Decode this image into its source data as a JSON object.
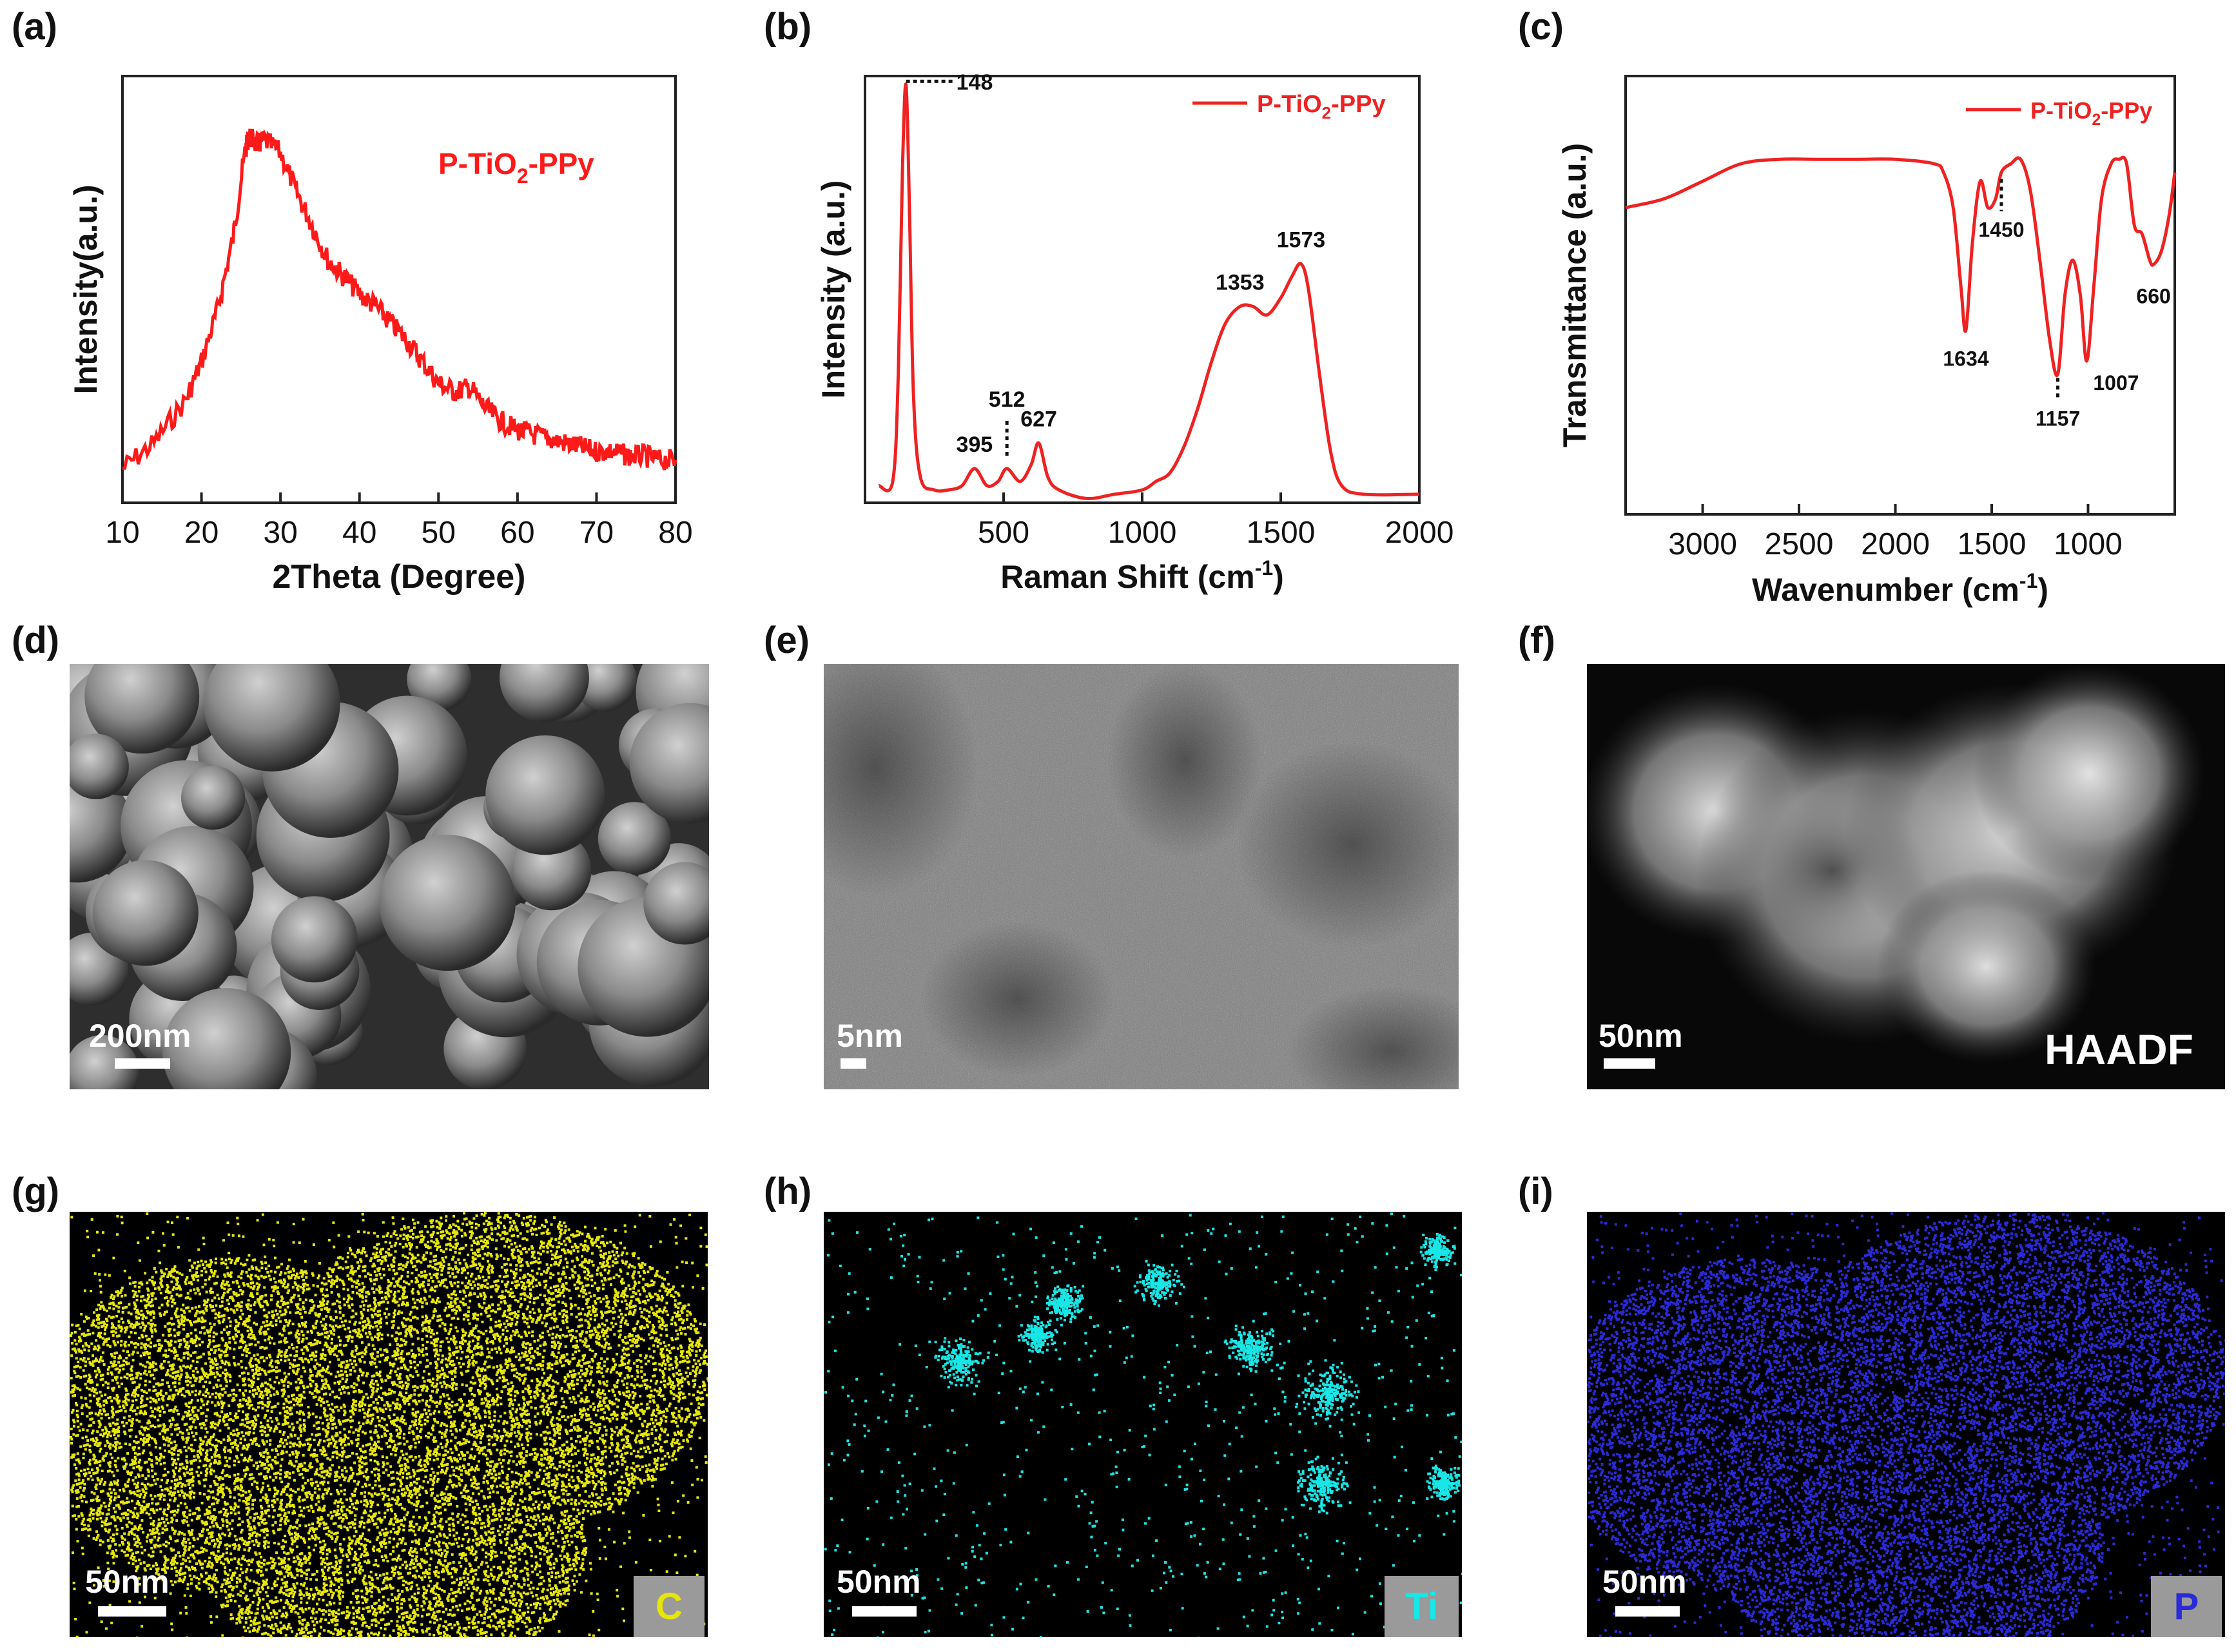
{
  "panels": {
    "a": {
      "label": "(a)"
    },
    "b": {
      "label": "(b)"
    },
    "c": {
      "label": "(c)"
    },
    "d": {
      "label": "(d)",
      "scale_bar": "200nm"
    },
    "e": {
      "label": "(e)",
      "scale_bar": "5nm"
    },
    "f": {
      "label": "(f)",
      "scale_bar": "50nm",
      "mode": "HAADF"
    },
    "g": {
      "label": "(g)",
      "scale_bar": "50nm",
      "element": "C",
      "color": "#e6e60a"
    },
    "h": {
      "label": "(h)",
      "scale_bar": "50nm",
      "element": "Ti",
      "color": "#19e6e6"
    },
    "i": {
      "label": "(i)",
      "scale_bar": "50nm",
      "element": "P",
      "color": "#2a2ad8"
    }
  },
  "chart_data": [
    {
      "id": "a",
      "type": "line",
      "title": "",
      "xlabel": "2Theta (Degree)",
      "ylabel": "Intensity(a.u.)",
      "xlim": [
        10,
        80
      ],
      "ylim": [
        0,
        1
      ],
      "xticks": [
        10,
        20,
        30,
        40,
        50,
        60,
        70,
        80
      ],
      "annotation": "P-TiO2-PPy",
      "series": [
        {
          "color": "#ff1a1a",
          "x": [
            10,
            14,
            18,
            20,
            22,
            24,
            25.5,
            26,
            27,
            28,
            30,
            32,
            34,
            36,
            38,
            40,
            42,
            44,
            46,
            48,
            50,
            52,
            54,
            56,
            58,
            60,
            62,
            64,
            66,
            68,
            70,
            72,
            74,
            76,
            78,
            80
          ],
          "y": [
            0.08,
            0.14,
            0.24,
            0.33,
            0.45,
            0.62,
            0.82,
            0.86,
            0.84,
            0.85,
            0.82,
            0.73,
            0.65,
            0.57,
            0.53,
            0.49,
            0.46,
            0.42,
            0.38,
            0.33,
            0.28,
            0.26,
            0.27,
            0.22,
            0.19,
            0.17,
            0.16,
            0.15,
            0.14,
            0.13,
            0.12,
            0.12,
            0.11,
            0.11,
            0.1,
            0.1
          ]
        }
      ]
    },
    {
      "id": "b",
      "type": "line",
      "title": "",
      "xlabel": "Raman Shift (cm",
      "xlabel_sup": "-1",
      "xlabel_end": ")",
      "ylabel": "Intensity (a.u.)",
      "xlim": [
        0,
        2000
      ],
      "ylim": [
        0,
        1
      ],
      "xticks": [
        500,
        1000,
        1500,
        2000
      ],
      "legend": "P-TiO2-PPy",
      "legend_position": "top-right",
      "peaks": [
        148,
        395,
        512,
        627,
        1353,
        1573
      ],
      "peak_labels": [
        "148",
        "395",
        "512",
        "627",
        "1353",
        "1573"
      ],
      "series": [
        {
          "name": "P-TiO2-PPy",
          "color": "#ee2222",
          "x": [
            50,
            100,
            120,
            135,
            148,
            160,
            175,
            200,
            250,
            300,
            350,
            395,
            440,
            480,
            512,
            560,
            600,
            627,
            660,
            700,
            800,
            900,
            1000,
            1050,
            1100,
            1150,
            1200,
            1250,
            1300,
            1353,
            1400,
            1450,
            1500,
            1540,
            1573,
            1600,
            1640,
            1680,
            1720,
            1800,
            2000
          ],
          "y": [
            0.04,
            0.05,
            0.3,
            0.78,
            0.98,
            0.7,
            0.25,
            0.06,
            0.03,
            0.03,
            0.04,
            0.08,
            0.04,
            0.05,
            0.08,
            0.05,
            0.09,
            0.14,
            0.06,
            0.03,
            0.01,
            0.02,
            0.03,
            0.05,
            0.07,
            0.13,
            0.22,
            0.33,
            0.42,
            0.46,
            0.46,
            0.44,
            0.48,
            0.53,
            0.56,
            0.5,
            0.3,
            0.12,
            0.04,
            0.02,
            0.02
          ]
        }
      ]
    },
    {
      "id": "c",
      "type": "line",
      "title": "",
      "xlabel": "Wavenumber (cm",
      "xlabel_sup": "-1",
      "xlabel_end": ")",
      "ylabel": "Transmittance (a.u.)",
      "xlim": [
        3400,
        550
      ],
      "ylim": [
        0,
        1
      ],
      "xticks": [
        3000,
        2500,
        2000,
        1500,
        1000
      ],
      "legend": "P-TiO2-PPy",
      "legend_position": "top-right",
      "peaks": [
        1634,
        1450,
        1157,
        1007,
        660
      ],
      "peak_labels": [
        "1634",
        "1450",
        "1157",
        "1007",
        "660"
      ],
      "series": [
        {
          "name": "P-TiO2-PPy",
          "color": "#ee2222",
          "x": [
            3400,
            3200,
            3000,
            2800,
            2600,
            2400,
            2200,
            2000,
            1800,
            1750,
            1700,
            1660,
            1634,
            1600,
            1560,
            1520,
            1480,
            1450,
            1400,
            1350,
            1300,
            1250,
            1200,
            1157,
            1120,
            1080,
            1040,
            1007,
            970,
            930,
            880,
            840,
            800,
            760,
            720,
            680,
            660,
            620,
            580,
            550
          ],
          "y": [
            0.7,
            0.72,
            0.76,
            0.8,
            0.81,
            0.81,
            0.81,
            0.81,
            0.8,
            0.78,
            0.7,
            0.52,
            0.42,
            0.62,
            0.76,
            0.7,
            0.72,
            0.78,
            0.8,
            0.81,
            0.74,
            0.58,
            0.4,
            0.32,
            0.5,
            0.58,
            0.5,
            0.35,
            0.52,
            0.72,
            0.8,
            0.81,
            0.8,
            0.66,
            0.64,
            0.58,
            0.57,
            0.6,
            0.68,
            0.78
          ]
        }
      ]
    }
  ]
}
